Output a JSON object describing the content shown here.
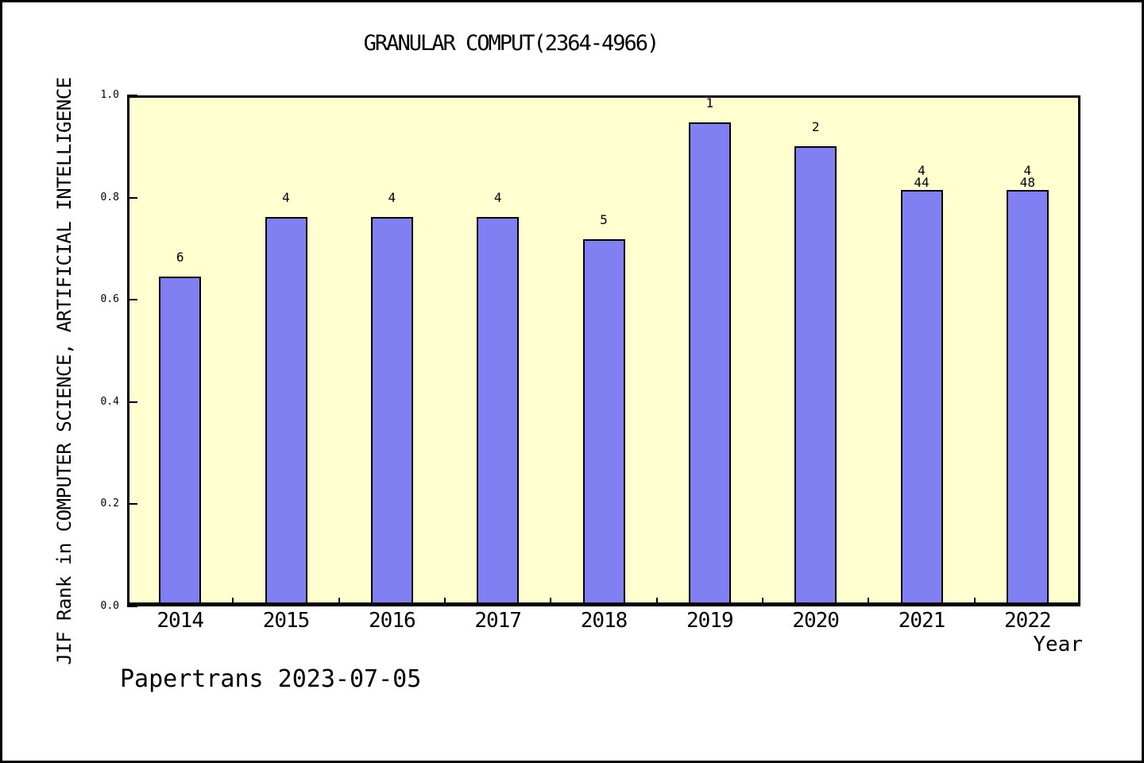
{
  "figure": {
    "watermark": "Papertrans 2023-07-05",
    "background": "#FFFFFF",
    "border_color": "#000000"
  },
  "chart_data": {
    "type": "bar",
    "title": "GRANULAR COMPUT(2364-4966)",
    "xlabel": "Year",
    "ylabel": "JIF Rank in COMPUTER SCIENCE, ARTIFICIAL INTELLIGENCE",
    "categories": [
      "2014",
      "2015",
      "2016",
      "2017",
      "2018",
      "2019",
      "2020",
      "2021",
      "2022"
    ],
    "values": [
      0.645,
      0.762,
      0.762,
      0.762,
      0.719,
      0.947,
      0.9,
      0.815,
      0.815
    ],
    "bar_labels": [
      [
        "6"
      ],
      [
        "4"
      ],
      [
        "4"
      ],
      [
        "4"
      ],
      [
        "5"
      ],
      [
        "1"
      ],
      [
        "2"
      ],
      [
        "4",
        "44"
      ],
      [
        "4",
        "48"
      ]
    ],
    "ylim": [
      0.0,
      1.0
    ],
    "yticks": [
      0.0,
      0.2,
      0.4,
      0.6,
      0.8,
      1.0
    ],
    "ytick_labels": [
      "0.0",
      "0.2",
      "0.4",
      "0.6",
      "0.8",
      "1.0"
    ],
    "grid": false,
    "legend_position": "none",
    "bar_width_fraction": 0.4,
    "colors": {
      "bar_fill": "#8080F2",
      "bar_edge": "#000000",
      "plot_background": "#FFFFD0",
      "axis": "#000000",
      "text": "#000000"
    }
  }
}
